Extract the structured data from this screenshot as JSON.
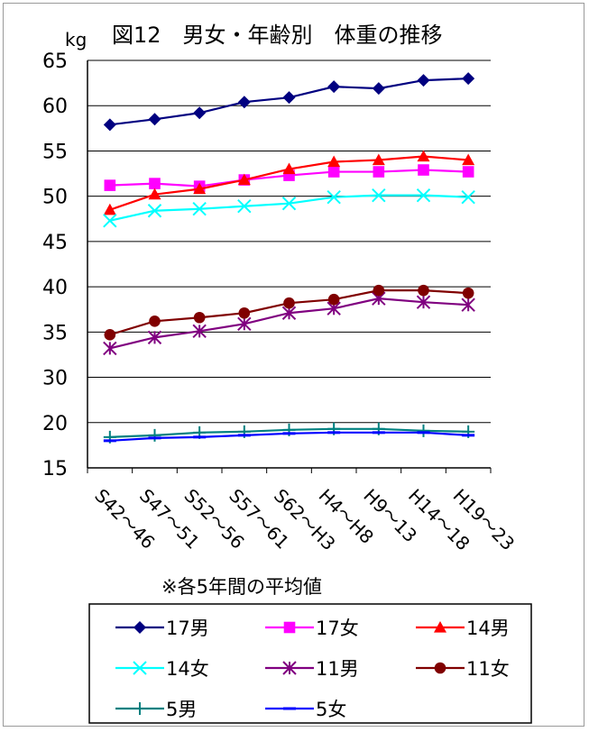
{
  "chart_data": {
    "type": "line",
    "title": "図12　男女・年齢別　体重の推移",
    "ylabel": "kg",
    "ylim": [
      15,
      65
    ],
    "y_ticks": [
      "65",
      "60",
      "55",
      "50",
      "45",
      "40",
      "35",
      "30",
      "20",
      "15"
    ],
    "grid": true,
    "categories": [
      "S42〜46",
      "S47〜51",
      "S52〜56",
      "S57〜61",
      "S62〜H3",
      "H4〜H8",
      "H9〜13",
      "H14〜18",
      "H19〜23"
    ],
    "note": "※各5年間の平均値",
    "legend_position": "bottom",
    "series": [
      {
        "name": "17男",
        "color": "#000080",
        "marker": "diamond",
        "values": [
          57.9,
          58.5,
          59.2,
          60.4,
          60.9,
          62.1,
          61.9,
          62.8,
          63.0
        ]
      },
      {
        "name": "17女",
        "color": "#ff00ff",
        "marker": "square",
        "values": [
          51.2,
          51.4,
          51.1,
          51.8,
          52.3,
          52.7,
          52.7,
          52.9,
          52.7
        ]
      },
      {
        "name": "14男",
        "color": "#ff0000",
        "marker": "triangle",
        "values": [
          48.5,
          50.2,
          50.8,
          51.8,
          53.0,
          53.8,
          54.0,
          54.4,
          54.0
        ]
      },
      {
        "name": "14女",
        "color": "#00ffff",
        "marker": "x",
        "values": [
          47.3,
          48.4,
          48.6,
          48.9,
          49.2,
          49.9,
          50.1,
          50.1,
          49.9
        ]
      },
      {
        "name": "11男",
        "color": "#800080",
        "marker": "asterisk",
        "values": [
          33.2,
          34.4,
          35.1,
          35.9,
          37.1,
          37.6,
          38.7,
          38.3,
          38.0
        ]
      },
      {
        "name": "11女",
        "color": "#800000",
        "marker": "circle",
        "values": [
          34.7,
          36.2,
          36.6,
          37.1,
          38.2,
          38.6,
          39.6,
          39.6,
          39.3
        ]
      },
      {
        "name": "5男",
        "color": "#008080",
        "marker": "plus",
        "values": [
          18.4,
          18.6,
          18.9,
          19.0,
          19.2,
          19.3,
          19.3,
          19.1,
          19.0
        ]
      },
      {
        "name": "5女",
        "color": "#0000ff",
        "marker": "dash",
        "values": [
          18.0,
          18.3,
          18.4,
          18.6,
          18.8,
          18.9,
          18.9,
          18.9,
          18.6
        ]
      }
    ]
  }
}
